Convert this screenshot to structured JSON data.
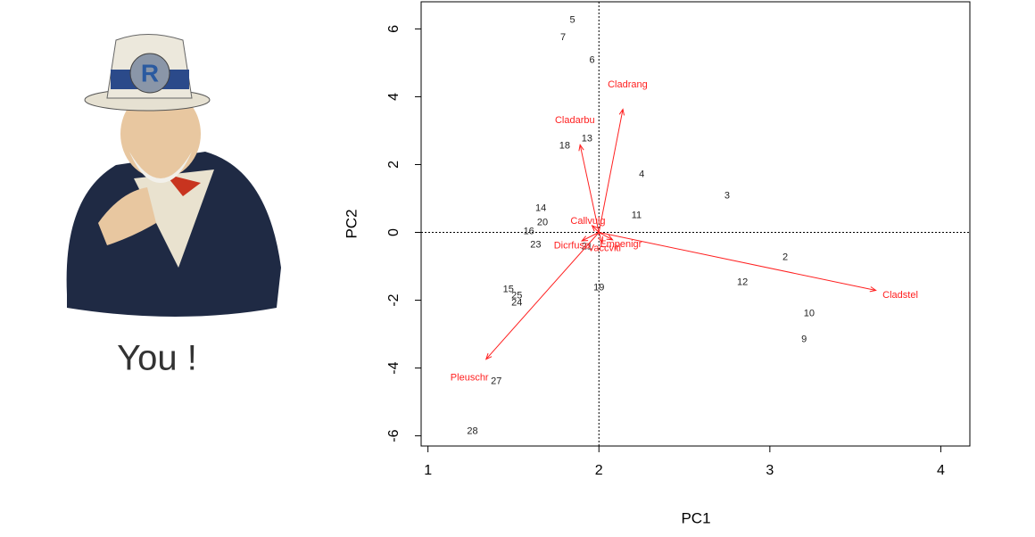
{
  "caption": "You !",
  "chart_data": {
    "type": "biplot",
    "x_label": "PC1",
    "y_label": "PC2",
    "xlim": [
      0.96,
      4.17
    ],
    "ylim": [
      -6.3,
      6.8
    ],
    "xticks": [
      1,
      2,
      3,
      4
    ],
    "yticks": [
      -6,
      -4,
      -2,
      0,
      2,
      4,
      6
    ],
    "reference_lines": {
      "x": 2,
      "y": 0
    },
    "point_color": "#222222",
    "arrow_color": "#ff2020",
    "points": [
      {
        "label": "5",
        "x": 1.845,
        "y": 6.26
      },
      {
        "label": "7",
        "x": 1.79,
        "y": 5.74
      },
      {
        "label": "6",
        "x": 1.96,
        "y": 5.08
      },
      {
        "label": "18",
        "x": 1.8,
        "y": 2.55
      },
      {
        "label": "13",
        "x": 1.93,
        "y": 2.76
      },
      {
        "label": "4",
        "x": 2.25,
        "y": 1.71
      },
      {
        "label": "3",
        "x": 2.75,
        "y": 1.08
      },
      {
        "label": "11",
        "x": 2.22,
        "y": 0.5
      },
      {
        "label": "14",
        "x": 1.66,
        "y": 0.71
      },
      {
        "label": "20",
        "x": 1.67,
        "y": 0.29
      },
      {
        "label": "16",
        "x": 1.59,
        "y": 0.03
      },
      {
        "label": "23",
        "x": 1.63,
        "y": -0.37
      },
      {
        "label": "21",
        "x": 1.93,
        "y": -0.42
      },
      {
        "label": "2",
        "x": 3.09,
        "y": -0.74
      },
      {
        "label": "12",
        "x": 2.84,
        "y": -1.47
      },
      {
        "label": "19",
        "x": 2.0,
        "y": -1.63
      },
      {
        "label": "15",
        "x": 1.47,
        "y": -1.68
      },
      {
        "label": "25",
        "x": 1.52,
        "y": -1.87
      },
      {
        "label": "24",
        "x": 1.52,
        "y": -2.08
      },
      {
        "label": "10",
        "x": 3.23,
        "y": -2.39
      },
      {
        "label": "9",
        "x": 3.2,
        "y": -3.16
      },
      {
        "label": "27",
        "x": 1.4,
        "y": -4.39
      },
      {
        "label": "28",
        "x": 1.26,
        "y": -5.87
      }
    ],
    "arrows": [
      {
        "label": "Cladrang",
        "x": 2.14,
        "y": 3.63
      },
      {
        "label": "Cladarbu",
        "x": 1.89,
        "y": 2.58
      },
      {
        "label": "Cladstel",
        "x": 3.62,
        "y": -1.71
      },
      {
        "label": "Pleuschr",
        "x": 1.34,
        "y": -3.74
      },
      {
        "label": "Callvulg",
        "x": 1.96,
        "y": 0.2
      },
      {
        "label": "Empenigr",
        "x": 2.08,
        "y": -0.22
      },
      {
        "label": "Dicrfusc",
        "x": 1.9,
        "y": -0.25
      },
      {
        "label": "Vaccviti",
        "x": 2.02,
        "y": -0.3
      }
    ]
  }
}
